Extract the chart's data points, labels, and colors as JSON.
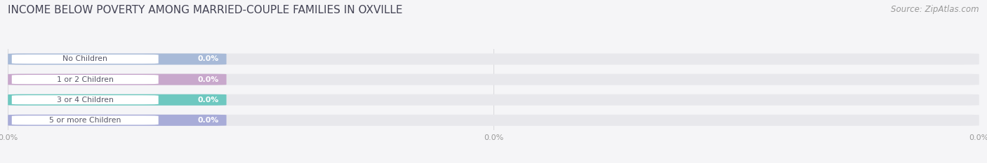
{
  "title": "INCOME BELOW POVERTY AMONG MARRIED-COUPLE FAMILIES IN OXVILLE",
  "source": "Source: ZipAtlas.com",
  "categories": [
    "No Children",
    "1 or 2 Children",
    "3 or 4 Children",
    "5 or more Children"
  ],
  "values": [
    0.0,
    0.0,
    0.0,
    0.0
  ],
  "bar_colors": [
    "#a8bad8",
    "#c8a8cc",
    "#6ec8c0",
    "#a8acd8"
  ],
  "bar_bg_color": "#e8e8ec",
  "white_pill_color": "#ffffff",
  "background_color": "#f5f5f7",
  "title_fontsize": 11,
  "source_fontsize": 8.5,
  "tick_label_color": "#999999",
  "value_label_color": "#ffffff",
  "category_label_color": "#555566",
  "grid_color": "#d8d8dc"
}
